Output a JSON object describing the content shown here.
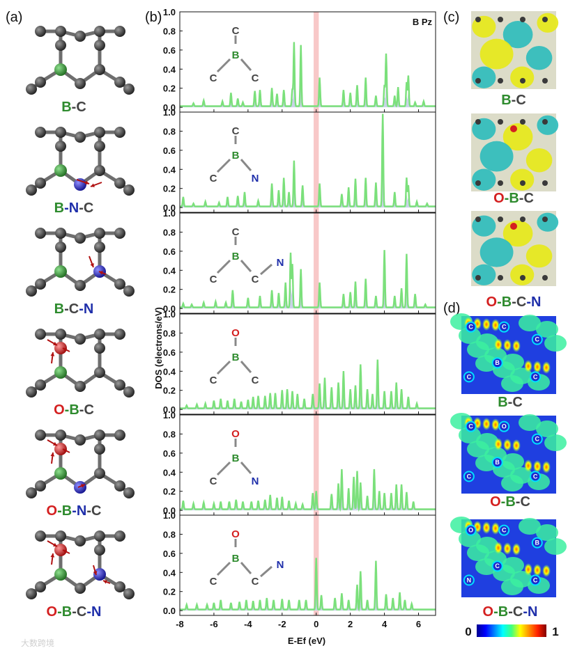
{
  "panel_letters": [
    "(a)",
    "(b)",
    "(c)",
    "(d)"
  ],
  "colors": {
    "dos_line": "#7be07b",
    "dos_fill": "#c9d2e8",
    "fermi_band": "#f8c8c8",
    "carbon": "#3a3a3a",
    "boron": "#2e8b2e",
    "nitrogen": "#2a2ad0",
    "oxygen": "#d42020",
    "label_c": "#444444",
    "label_b": "#2e8b2e",
    "label_n": "#1f2faa",
    "label_o": "#d42020"
  },
  "structures_a": [
    {
      "label": [
        [
          "B",
          "b"
        ],
        [
          "-C",
          "c"
        ]
      ]
    },
    {
      "label": [
        [
          "B",
          "b"
        ],
        [
          "-N",
          "n"
        ],
        [
          "-C",
          "c"
        ]
      ]
    },
    {
      "label": [
        [
          "B",
          "b"
        ],
        [
          "-C",
          "c"
        ],
        [
          "-N",
          "n"
        ]
      ]
    },
    {
      "label": [
        [
          "O",
          "o"
        ],
        [
          "-B",
          "b"
        ],
        [
          "-C",
          "c"
        ]
      ]
    },
    {
      "label": [
        [
          "O",
          "o"
        ],
        [
          "-B",
          "b"
        ],
        [
          "-N",
          "n"
        ],
        [
          "-C",
          "c"
        ]
      ]
    },
    {
      "label": [
        [
          "O",
          "o"
        ],
        [
          "-B",
          "b"
        ],
        [
          "-C",
          "c"
        ],
        [
          "-N",
          "n"
        ]
      ]
    }
  ],
  "charge_c": [
    {
      "label": [
        [
          "B",
          "b"
        ],
        [
          "-C",
          "c"
        ]
      ]
    },
    {
      "label": [
        [
          "O",
          "o"
        ],
        [
          "-B",
          "b"
        ],
        [
          "-C",
          "c"
        ]
      ]
    },
    {
      "label": [
        [
          "O",
          "o"
        ],
        [
          "-B",
          "b"
        ],
        [
          "-C",
          "c"
        ],
        [
          "-N",
          "n"
        ]
      ]
    }
  ],
  "elf_d": [
    {
      "label": [
        [
          "B",
          "b"
        ],
        [
          "-C",
          "c"
        ]
      ],
      "atoms": [
        "C",
        "C",
        "C",
        "B",
        "C",
        "C"
      ]
    },
    {
      "label": [
        [
          "O",
          "o"
        ],
        [
          "-B",
          "b"
        ],
        [
          "-C",
          "c"
        ]
      ],
      "atoms": [
        "C",
        "O",
        "C",
        "B",
        "C",
        "C"
      ]
    },
    {
      "label": [
        [
          "O",
          "o"
        ],
        [
          "-B",
          "b"
        ],
        [
          "-C",
          "c"
        ],
        [
          "-N",
          "n"
        ]
      ],
      "atoms": [
        "O",
        "C",
        "B",
        "C",
        "C",
        "N"
      ]
    }
  ],
  "colorbar": {
    "min": "0",
    "max": "1"
  },
  "watermark": "大数跨境",
  "chart_data": {
    "type": "line",
    "title": "B Pz",
    "xlabel": "E-Ef (eV)",
    "ylabel": "DOS (electrons/eV)",
    "xlim": [
      -8,
      7
    ],
    "ylim": [
      -0.05,
      1.0
    ],
    "xticks": [
      "-8",
      "-6",
      "-4",
      "-2",
      "0",
      "2",
      "4",
      "6"
    ],
    "yticks": [
      "0.0",
      "0.2",
      "0.4",
      "0.6",
      "0.8",
      "1.0"
    ],
    "fermi_level_eV": 0,
    "panels": [
      {
        "inset": {
          "top": "C",
          "center": "B",
          "left": "C",
          "right": "C"
        },
        "peaks": [
          [
            -7.2,
            0.03
          ],
          [
            -6.6,
            0.06
          ],
          [
            -5.5,
            0.05
          ],
          [
            -5.0,
            0.14
          ],
          [
            -4.6,
            0.08
          ],
          [
            -4.3,
            0.04
          ],
          [
            -3.6,
            0.16
          ],
          [
            -3.3,
            0.17
          ],
          [
            -2.6,
            0.19
          ],
          [
            -2.3,
            0.13
          ],
          [
            -1.9,
            0.17
          ],
          [
            -1.4,
            0.18
          ],
          [
            -1.3,
            0.67
          ],
          [
            -0.9,
            0.64
          ],
          [
            0.2,
            0.3
          ],
          [
            1.6,
            0.17
          ],
          [
            2.0,
            0.14
          ],
          [
            2.4,
            0.22
          ],
          [
            2.9,
            0.3
          ],
          [
            3.5,
            0.11
          ],
          [
            4.0,
            0.22
          ],
          [
            4.1,
            0.55
          ],
          [
            4.6,
            0.11
          ],
          [
            4.8,
            0.2
          ],
          [
            5.3,
            0.25
          ],
          [
            5.4,
            0.32
          ],
          [
            5.8,
            0.04
          ],
          [
            6.3,
            0.05
          ]
        ]
      },
      {
        "inset": {
          "top": "C",
          "center": "B",
          "left": "C",
          "right": "N"
        },
        "peaks": [
          [
            -7.8,
            0.1
          ],
          [
            -7.2,
            0.03
          ],
          [
            -6.5,
            0.05
          ],
          [
            -5.7,
            0.04
          ],
          [
            -5.2,
            0.1
          ],
          [
            -4.6,
            0.11
          ],
          [
            -4.2,
            0.15
          ],
          [
            -3.4,
            0.06
          ],
          [
            -2.6,
            0.24
          ],
          [
            -2.2,
            0.17
          ],
          [
            -1.9,
            0.3
          ],
          [
            -1.6,
            0.15
          ],
          [
            -1.3,
            0.48
          ],
          [
            -0.8,
            0.22
          ],
          [
            0.2,
            0.24
          ],
          [
            1.5,
            0.13
          ],
          [
            1.9,
            0.2
          ],
          [
            2.3,
            0.29
          ],
          [
            2.9,
            0.3
          ],
          [
            3.5,
            0.25
          ],
          [
            3.9,
            0.97
          ],
          [
            4.6,
            0.15
          ],
          [
            5.3,
            0.3
          ],
          [
            5.4,
            0.22
          ],
          [
            5.9,
            0.05
          ],
          [
            6.5,
            0.03
          ]
        ]
      },
      {
        "inset": {
          "top": "C",
          "center": "B",
          "left": "C",
          "right": "C",
          "far": "N"
        },
        "peaks": [
          [
            -7.8,
            0.04
          ],
          [
            -7.3,
            0.03
          ],
          [
            -6.6,
            0.05
          ],
          [
            -5.9,
            0.06
          ],
          [
            -5.3,
            0.05
          ],
          [
            -4.9,
            0.18
          ],
          [
            -4.0,
            0.1
          ],
          [
            -3.3,
            0.12
          ],
          [
            -2.6,
            0.18
          ],
          [
            -2.2,
            0.15
          ],
          [
            -1.8,
            0.26
          ],
          [
            -1.5,
            0.57
          ],
          [
            -1.4,
            0.45
          ],
          [
            -0.9,
            0.4
          ],
          [
            0.2,
            0.26
          ],
          [
            1.6,
            0.14
          ],
          [
            2.0,
            0.16
          ],
          [
            2.3,
            0.27
          ],
          [
            2.9,
            0.3
          ],
          [
            3.5,
            0.12
          ],
          [
            4.0,
            0.6
          ],
          [
            4.6,
            0.12
          ],
          [
            5.0,
            0.2
          ],
          [
            5.3,
            0.56
          ],
          [
            5.8,
            0.14
          ],
          [
            6.4,
            0.03
          ]
        ]
      },
      {
        "inset": {
          "top": "O",
          "center": "B",
          "left": "C",
          "right": "C"
        },
        "peaks": [
          [
            -7.6,
            0.03
          ],
          [
            -7.0,
            0.04
          ],
          [
            -6.5,
            0.05
          ],
          [
            -6.0,
            0.08
          ],
          [
            -5.6,
            0.1
          ],
          [
            -5.2,
            0.08
          ],
          [
            -4.8,
            0.1
          ],
          [
            -4.4,
            0.07
          ],
          [
            -4.0,
            0.09
          ],
          [
            -3.7,
            0.12
          ],
          [
            -3.4,
            0.13
          ],
          [
            -3.0,
            0.13
          ],
          [
            -2.7,
            0.16
          ],
          [
            -2.4,
            0.16
          ],
          [
            -2.0,
            0.19
          ],
          [
            -1.7,
            0.2
          ],
          [
            -1.4,
            0.18
          ],
          [
            -1.1,
            0.15
          ],
          [
            -0.7,
            0.1
          ],
          [
            -0.2,
            0.15
          ],
          [
            0.2,
            0.26
          ],
          [
            0.5,
            0.32
          ],
          [
            0.9,
            0.22
          ],
          [
            1.3,
            0.27
          ],
          [
            1.6,
            0.39
          ],
          [
            2.0,
            0.2
          ],
          [
            2.3,
            0.24
          ],
          [
            2.6,
            0.46
          ],
          [
            3.0,
            0.2
          ],
          [
            3.3,
            0.15
          ],
          [
            3.6,
            0.51
          ],
          [
            4.0,
            0.18
          ],
          [
            4.4,
            0.18
          ],
          [
            4.7,
            0.27
          ],
          [
            5.0,
            0.2
          ],
          [
            5.4,
            0.12
          ],
          [
            5.9,
            0.05
          ]
        ]
      },
      {
        "inset": {
          "top": "O",
          "center": "B",
          "left": "C",
          "right": "N"
        },
        "peaks": [
          [
            -7.8,
            0.09
          ],
          [
            -7.2,
            0.06
          ],
          [
            -6.6,
            0.07
          ],
          [
            -6.0,
            0.06
          ],
          [
            -5.6,
            0.08
          ],
          [
            -5.1,
            0.08
          ],
          [
            -4.7,
            0.1
          ],
          [
            -4.3,
            0.08
          ],
          [
            -3.8,
            0.08
          ],
          [
            -3.4,
            0.09
          ],
          [
            -3.0,
            0.1
          ],
          [
            -2.7,
            0.15
          ],
          [
            -2.3,
            0.12
          ],
          [
            -2.0,
            0.13
          ],
          [
            -1.6,
            0.09
          ],
          [
            -1.2,
            0.06
          ],
          [
            -0.8,
            0.05
          ],
          [
            -0.2,
            0.17
          ],
          [
            0.0,
            0.19
          ],
          [
            0.9,
            0.16
          ],
          [
            1.3,
            0.27
          ],
          [
            1.5,
            0.42
          ],
          [
            1.9,
            0.22
          ],
          [
            2.2,
            0.34
          ],
          [
            2.4,
            0.4
          ],
          [
            2.6,
            0.28
          ],
          [
            3.0,
            0.14
          ],
          [
            3.4,
            0.42
          ],
          [
            3.7,
            0.19
          ],
          [
            4.0,
            0.17
          ],
          [
            4.4,
            0.17
          ],
          [
            4.7,
            0.26
          ],
          [
            5.0,
            0.26
          ],
          [
            5.3,
            0.18
          ],
          [
            5.7,
            0.08
          ]
        ]
      },
      {
        "inset": {
          "top": "O",
          "center": "B",
          "left": "C",
          "right": "C",
          "far": "N"
        },
        "peaks": [
          [
            -7.6,
            0.05
          ],
          [
            -7.0,
            0.05
          ],
          [
            -6.4,
            0.05
          ],
          [
            -6.0,
            0.07
          ],
          [
            -5.6,
            0.1
          ],
          [
            -5.0,
            0.07
          ],
          [
            -4.5,
            0.08
          ],
          [
            -4.1,
            0.1
          ],
          [
            -3.7,
            0.09
          ],
          [
            -3.3,
            0.1
          ],
          [
            -2.9,
            0.12
          ],
          [
            -2.5,
            0.1
          ],
          [
            -2.0,
            0.11
          ],
          [
            -1.6,
            0.1
          ],
          [
            -1.0,
            0.1
          ],
          [
            -0.6,
            0.1
          ],
          [
            0.0,
            0.54
          ],
          [
            0.3,
            0.15
          ],
          [
            1.1,
            0.12
          ],
          [
            1.5,
            0.17
          ],
          [
            1.9,
            0.1
          ],
          [
            2.4,
            0.26
          ],
          [
            2.6,
            0.4
          ],
          [
            3.0,
            0.1
          ],
          [
            3.5,
            0.51
          ],
          [
            4.1,
            0.16
          ],
          [
            4.5,
            0.12
          ],
          [
            4.9,
            0.18
          ],
          [
            5.2,
            0.1
          ],
          [
            5.6,
            0.06
          ]
        ]
      }
    ]
  }
}
